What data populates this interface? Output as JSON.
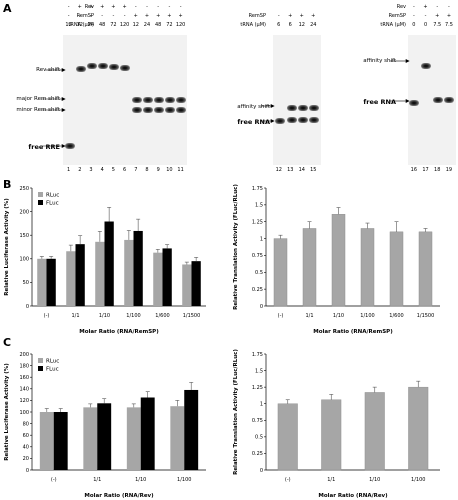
{
  "panelA": {
    "letter": "A",
    "gel1": {
      "rows": {
        "rev": "Rev",
        "remsp": "RemSP",
        "trna": "tRNA (μM)"
      },
      "rev": [
        "-",
        "+",
        "+",
        "+",
        "+",
        "+",
        "-",
        "-",
        "-",
        "-",
        "-"
      ],
      "remsp": [
        "-",
        "-",
        "-",
        "-",
        "-",
        "-",
        "+",
        "+",
        "+",
        "+",
        "+"
      ],
      "trna": [
        "12",
        "12",
        "24",
        "48",
        "72",
        "120",
        "12",
        "24",
        "48",
        "72",
        "120"
      ],
      "lanes": [
        "1",
        "2",
        "3",
        "4",
        "5",
        "6",
        "7",
        "8",
        "9",
        "10",
        "11"
      ],
      "annotations": [
        "Rev shift",
        "major Rem shift",
        "minor Rem shift",
        "free RRE"
      ]
    },
    "gel2": {
      "rows": {
        "remsp": "RemSP",
        "trna": "tRNA (μM)"
      },
      "remsp": [
        "-",
        "+",
        "+",
        "+"
      ],
      "trna": [
        "6",
        "6",
        "12",
        "24"
      ],
      "lanes": [
        "12",
        "13",
        "14",
        "15"
      ],
      "annotations": [
        "affinity shift",
        "free RNA"
      ]
    },
    "gel3": {
      "rows": {
        "rev": "Rev",
        "remsp": "RemSP",
        "trna": "tRNA (μM)"
      },
      "rev": [
        "-",
        "+",
        "-",
        "-"
      ],
      "remsp": [
        "-",
        "-",
        "+",
        "+"
      ],
      "trna": [
        "0",
        "0",
        "7.5",
        "7.5"
      ],
      "lanes": [
        "16",
        "17",
        "18",
        "19"
      ],
      "annotations": [
        "affinity shift",
        "free RNA"
      ]
    }
  },
  "panelB": {
    "letter": "B"
  },
  "panelC": {
    "letter": "C"
  },
  "chart_data": [
    {
      "type": "bar",
      "panel": "B-left",
      "categories": [
        "(-)",
        "1/1",
        "1/10",
        "1/100",
        "1/600",
        "1/1500"
      ],
      "series": [
        {
          "name": "RLuc",
          "values": [
            100,
            116,
            136,
            140,
            113,
            88
          ]
        },
        {
          "name": "FLuc",
          "values": [
            100,
            131,
            179,
            159,
            122,
            95
          ]
        }
      ],
      "errors": [
        [
          5,
          13,
          22,
          20,
          7,
          5
        ],
        [
          5,
          18,
          30,
          25,
          8,
          8
        ]
      ],
      "xlabel": "Molar Ratio (RNA/RemSP)",
      "ylabel": "Relative Luciferase Activity (%)",
      "ylim": [
        0,
        250
      ],
      "yticks": [
        "0",
        "50",
        "100",
        "150",
        "200",
        "250"
      ],
      "colors": {
        "RLuc": "#a6a6a6",
        "FLuc": "#000000"
      }
    },
    {
      "type": "bar",
      "panel": "B-right",
      "categories": [
        "(-)",
        "1/1",
        "1/10",
        "1/100",
        "1/600",
        "1/1500"
      ],
      "series": [
        {
          "values": [
            1.0,
            1.15,
            1.36,
            1.15,
            1.1,
            1.1
          ]
        }
      ],
      "errors": [
        [
          0.05,
          0.1,
          0.1,
          0.08,
          0.15,
          0.05
        ]
      ],
      "xlabel": "Molar Ratio (RNA/RemSP)",
      "ylabel": "Relative Translation Activity (FLuc/RLuc)",
      "ylim": [
        0,
        1.75
      ],
      "yticks": [
        "0",
        "0.25",
        "0.5",
        "0.75",
        "1",
        "1.25",
        "1.5",
        "1.75"
      ],
      "colors": {
        "bar": "#a6a6a6"
      }
    },
    {
      "type": "bar",
      "panel": "C-left",
      "categories": [
        "(-)",
        "1/1",
        "1/10",
        "1/100"
      ],
      "series": [
        {
          "name": "RLuc",
          "values": [
            100,
            108,
            108,
            110
          ]
        },
        {
          "name": "FLuc",
          "values": [
            100,
            115,
            125,
            138
          ]
        }
      ],
      "errors": [
        [
          6,
          6,
          6,
          10
        ],
        [
          6,
          8,
          10,
          13
        ]
      ],
      "xlabel": "Molar Ratio (RNA/Rev)",
      "ylabel": "Relative Luciferase Activity (%)",
      "ylim": [
        0,
        200
      ],
      "yticks": [
        "0",
        "20",
        "40",
        "60",
        "80",
        "100",
        "120",
        "140",
        "160",
        "180",
        "200"
      ],
      "colors": {
        "RLuc": "#a6a6a6",
        "FLuc": "#000000"
      }
    },
    {
      "type": "bar",
      "panel": "C-right",
      "categories": [
        "(-)",
        "1/1",
        "1/10",
        "1/100"
      ],
      "series": [
        {
          "values": [
            1.0,
            1.06,
            1.17,
            1.25
          ]
        }
      ],
      "errors": [
        [
          0.06,
          0.08,
          0.08,
          0.09
        ]
      ],
      "xlabel": "Molar Ratio (RNA/Rev)",
      "ylabel": "Relative Translation Activity (FLuc/RLuc)",
      "ylim": [
        0,
        1.75
      ],
      "yticks": [
        "0",
        "0.25",
        "0.5",
        "0.75",
        "1",
        "1.25",
        "1.5",
        "1.75"
      ],
      "colors": {
        "bar": "#a6a6a6"
      }
    }
  ]
}
